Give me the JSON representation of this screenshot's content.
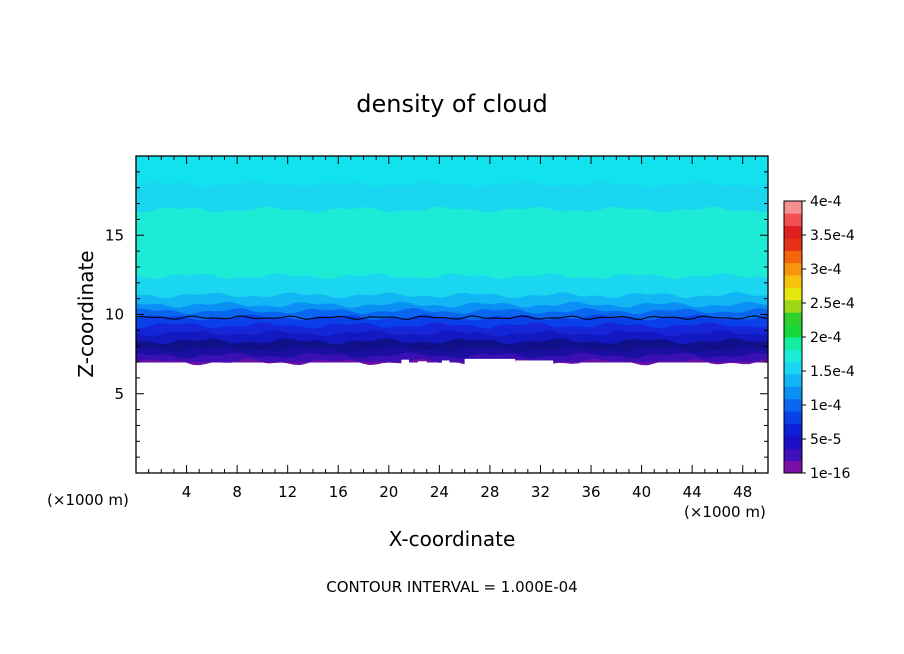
{
  "chart_data": {
    "type": "heatmap",
    "title": "density of cloud",
    "xlabel": "X-coordinate",
    "ylabel": "Z-coordinate",
    "x_unit": "(×1000 m)",
    "y_unit": "(×1000 m)",
    "xlim": [
      0,
      50
    ],
    "ylim": [
      0,
      20
    ],
    "xticks": [
      4,
      8,
      12,
      16,
      20,
      24,
      28,
      32,
      36,
      40,
      44,
      48
    ],
    "yticks": [
      5,
      10,
      15
    ],
    "footnote": "CONTOUR INTERVAL = 1.000E-04",
    "contour_interval": 0.0001,
    "colorbar": {
      "labels": [
        "1e-16",
        "5e-5",
        "1e-4",
        "1.5e-4",
        "2e-4",
        "2.5e-4",
        "3e-4",
        "3.5e-4",
        "4e-4"
      ],
      "levels": [
        1e-16,
        5e-05,
        0.0001,
        0.00015,
        0.0002,
        0.00025,
        0.0003,
        0.00035,
        0.0004
      ],
      "colors": [
        "#7b0fa8",
        "#3d10b8",
        "#1c0fc8",
        "#0d20d8",
        "#0a40e8",
        "#0a66f0",
        "#0a90f5",
        "#12b6f4",
        "#1ad6f0",
        "#1cecd6",
        "#14eca0",
        "#16d83c",
        "#2ed02c",
        "#9cd816",
        "#e6e610",
        "#f6c20c",
        "#f6960c",
        "#f2660c",
        "#e6301a",
        "#e02020",
        "#f05050",
        "#f49090"
      ]
    },
    "field": {
      "cloud_base_km": 7.0,
      "cloud_top_km": 20.0,
      "max_density_layer_km": [
        12.5,
        16.8
      ],
      "max_density_value": 0.00015,
      "contour_level_line": 5e-05,
      "contour_line_height_km": 9.8
    }
  }
}
